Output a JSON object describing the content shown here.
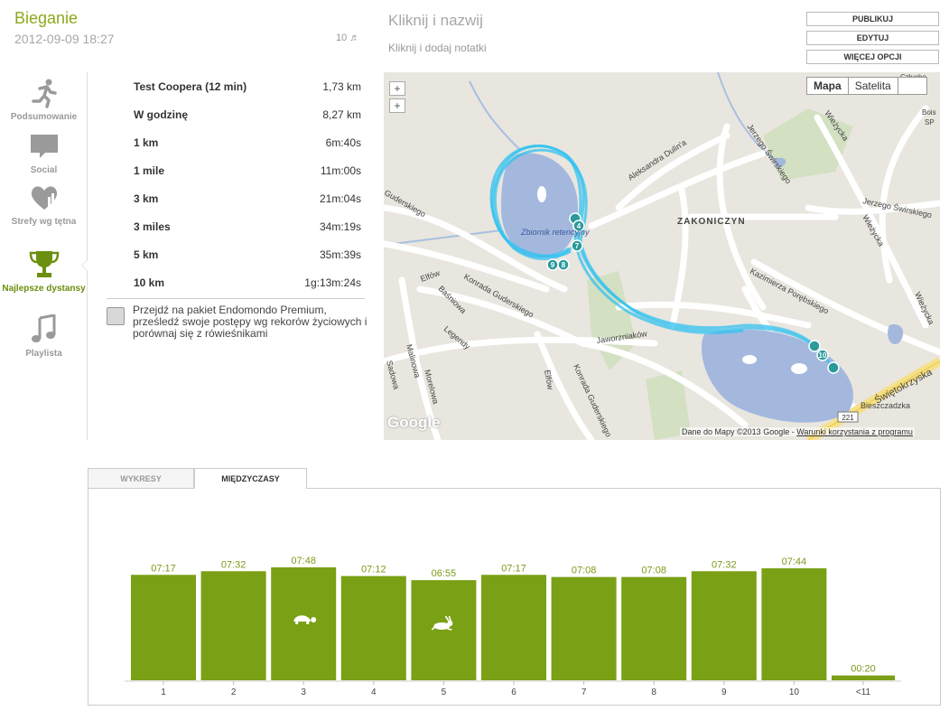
{
  "header": {
    "title": "Bieganie",
    "date": "2012-09-09 18:27",
    "songs_count": "10 ♬",
    "name_prompt": "Kliknij i nazwij",
    "note_prompt": "Kliknij i dodaj notatki"
  },
  "actions": {
    "publish": "PUBLIKUJ",
    "edit": "EDYTUJ",
    "more": "WIĘCEJ OPCJI"
  },
  "sidebar": {
    "items": [
      {
        "label": "Podsumowanie",
        "icon": "runner-icon"
      },
      {
        "label": "Social",
        "icon": "speech-bubble-icon"
      },
      {
        "label": "Strefy wg tętna",
        "icon": "heart-chart-icon"
      },
      {
        "label": "Najlepsze dystansy",
        "icon": "trophy-icon",
        "active": true
      },
      {
        "label": "Playlista",
        "icon": "music-note-icon"
      }
    ]
  },
  "records": [
    {
      "label": "Test Coopera (12 min)",
      "value": "1,73 km"
    },
    {
      "label": "W godzinę",
      "value": "8,27 km"
    },
    {
      "label": "1 km",
      "value": "6m:40s"
    },
    {
      "label": "1 mile",
      "value": "11m:00s"
    },
    {
      "label": "3 km",
      "value": "21m:04s"
    },
    {
      "label": "3 miles",
      "value": "34m:19s"
    },
    {
      "label": "5 km",
      "value": "35m:39s"
    },
    {
      "label": "10 km",
      "value": "1g:13m:24s"
    }
  ],
  "promo": "Przejdź na pakiet Endomondo Premium, prześledź swoje postępy wg rekorów życiowych i porównaj się z rówieśnikami",
  "map": {
    "zoom_in": "+",
    "zoom_out": "+",
    "type_map": "Mapa",
    "type_satellite": "Satelita",
    "attribution": "Dane do Mapy ©2013 Google - ",
    "terms_link": "Warunki korzystania z programu",
    "logo": "Google",
    "labels": {
      "district": "ZAKONICZYN",
      "reservoir": "Zbiornik retencyjny",
      "dulina": "Aleksandra Dulin'a",
      "swirski1": "Jerzego Świrskiego",
      "swirski2": "Jerzego Świrskiego",
      "wiezycka1": "Wieżycka",
      "wiezycka2": "Wieżycka",
      "wiezycka3": "Wieżycka",
      "porebski": "Kazimierza Porębskiego",
      "guderski1": "Konrada Guderskiego",
      "guderski2": "Konrada Guderskiego",
      "guderski3": "Guderskiego",
      "jaworzniakow": "Jaworzniaków",
      "swietokrzyska": "Świętokrzyska",
      "bieszczadzka": "Bieszczadzka",
      "elfow1": "Elfów",
      "elfow2": "Elfów",
      "basniowa": "Baśniowa",
      "legendy": "Legendy",
      "malinowa": "Malinowa",
      "morelowa": "Morelowa",
      "sadowa": "Sadowa",
      "road_no": "221",
      "czlucho": "Człucho",
      "bois": "Bois",
      "sp": "SP"
    },
    "markers": [
      "4",
      "7",
      "9",
      "8",
      "10"
    ]
  },
  "tabs": {
    "charts": "WYKRESY",
    "splits": "MIĘDZYCZASY"
  },
  "chart_data": {
    "type": "bar",
    "categories": [
      "1",
      "2",
      "3",
      "4",
      "5",
      "6",
      "7",
      "8",
      "9",
      "10",
      "<11"
    ],
    "values": [
      437,
      452,
      468,
      432,
      415,
      437,
      428,
      428,
      452,
      464,
      20
    ],
    "value_labels": [
      "07:17",
      "07:32",
      "07:48",
      "07:12",
      "06:55",
      "07:17",
      "07:08",
      "07:08",
      "07:32",
      "07:44",
      "00:20"
    ],
    "slowest_index": 2,
    "fastest_index": 4,
    "slowest_icon": "turtle-icon",
    "fastest_icon": "hare-icon",
    "bar_color": "#7aa015",
    "label_color": "#7a9a1a"
  }
}
